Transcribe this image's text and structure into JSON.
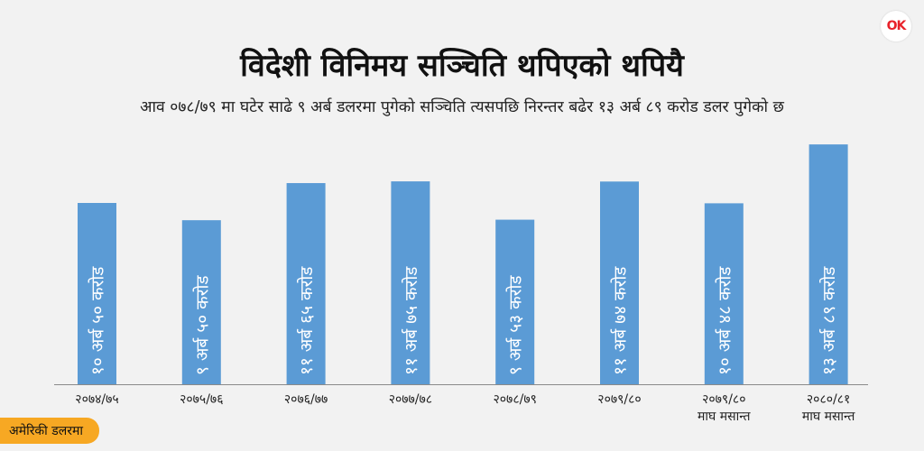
{
  "logo": {
    "text": "OK"
  },
  "unit_badge": "अमेरिकी डलरमा",
  "colors": {
    "bar": "#5b9bd5",
    "axis": "#8a8a8a",
    "badge": "#f7a823"
  },
  "chart_data": {
    "type": "bar",
    "title": "विदेशी विनिमय सञ्चिति थपिएको थपियै",
    "subtitle": "आव ०७८/७९ मा घटेर साढे ९ अर्ब डलरमा पुगेको सञ्चिति त्यसपछि निरन्तर बढेर १३ अर्ब ८९ करोड डलर पुगेको छ",
    "unit": "अमेरिकी डलरमा",
    "categories": [
      [
        "२०७४/७५"
      ],
      [
        "२०७५/७६"
      ],
      [
        "२०७६/७७"
      ],
      [
        "२०७७/७८"
      ],
      [
        "२०७८/७९"
      ],
      [
        "२०७९/८०"
      ],
      [
        "२०७९/८०",
        "माघ मसान्त"
      ],
      [
        "२०८०/८१",
        "माघ मसान्त"
      ]
    ],
    "values": [
      10.5,
      9.5,
      11.65,
      11.75,
      9.53,
      11.74,
      10.48,
      13.89
    ],
    "data_labels": [
      "१० अर्ब ५० करोड",
      "९ अर्ब ५० करोड",
      "११ अर्ब ६५ करोड",
      "११ अर्ब ७५ करोड",
      "९ अर्ब ५३ करोड",
      "११ अर्ब ७४ करोड",
      "१० अर्ब ४८ करोड",
      "१३ अर्ब ८९ करोड"
    ],
    "ylim": [
      0,
      14.0
    ],
    "grid": false,
    "legend": "none"
  }
}
